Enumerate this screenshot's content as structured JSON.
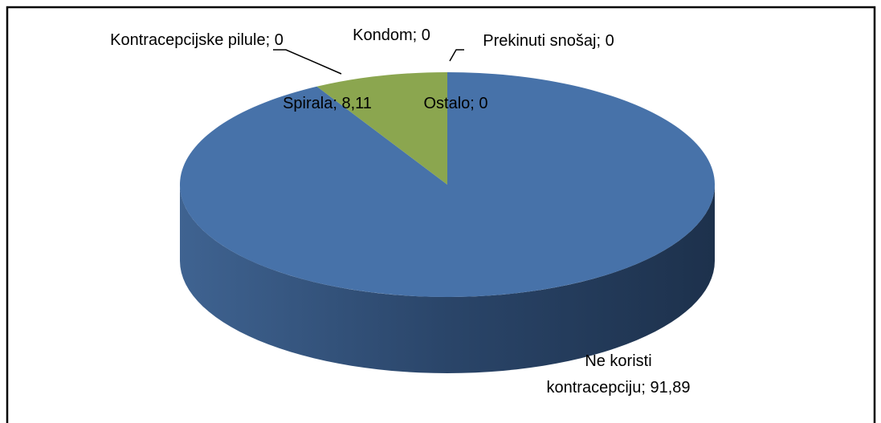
{
  "chart_data": {
    "type": "pie3d",
    "categories": [
      "Ne koristi kontracepciju",
      "Spirala",
      "Kontracepcijske pilule",
      "Kondom",
      "Prekinuti snošaj",
      "Ostalo"
    ],
    "values": [
      91.89,
      8.11,
      0,
      0,
      0,
      0
    ],
    "value_labels": [
      "91,89",
      "8,11",
      "0",
      "0",
      "0",
      "0"
    ],
    "label_separator": "; ",
    "colors": [
      "#4772a9",
      "#8ba64f",
      "#b05652",
      "#7e62a0",
      "#4aacc6",
      "#f59646"
    ]
  }
}
